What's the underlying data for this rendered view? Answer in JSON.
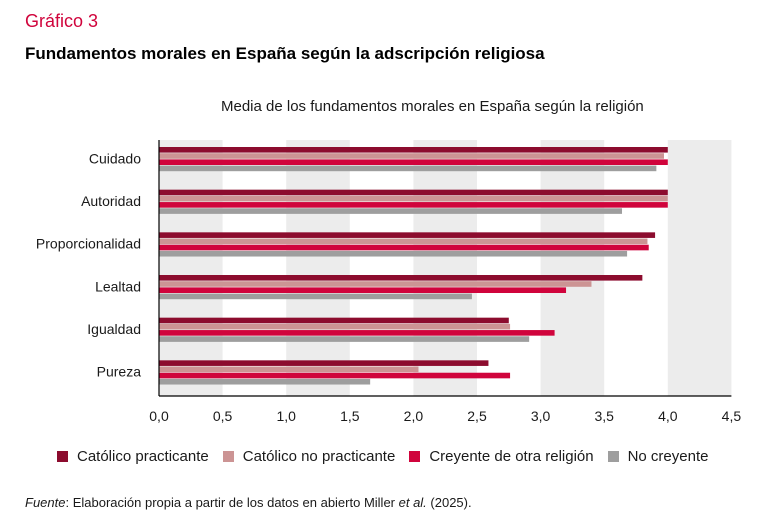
{
  "header": {
    "kicker": "Gráfico 3",
    "title": "Fundamentos morales en España según la adscripción religiosa"
  },
  "source": {
    "label": "Fuente",
    "text_before": ": Elaboración propia a partir de los datos en abierto Miller ",
    "italic": "et al.",
    "text_after": " (2025)."
  },
  "chart_data": {
    "type": "bar",
    "orientation": "horizontal",
    "title": "Media de los fundamentos morales en España según la religión",
    "xlabel": "",
    "ylabel": "",
    "xlim": [
      0,
      4.5
    ],
    "xticks": [
      "0,0",
      "0,5",
      "1,0",
      "1,5",
      "2,0",
      "2,5",
      "3,0",
      "3,5",
      "4,0",
      "4,5"
    ],
    "tick_values": [
      0,
      0.5,
      1.0,
      1.5,
      2.0,
      2.5,
      3.0,
      3.5,
      4.0,
      4.5
    ],
    "grid": "alternating vertical bands",
    "legend_position": "bottom",
    "categories": [
      "Cuidado",
      "Autoridad",
      "Proporcionalidad",
      "Lealtad",
      "Igualdad",
      "Pureza"
    ],
    "series": [
      {
        "name": "Católico practicante",
        "color": "#8c0c2e",
        "values": [
          4.0,
          4.0,
          3.9,
          3.8,
          2.75,
          2.59
        ]
      },
      {
        "name": "Católico no practicante",
        "color": "#cc9494",
        "values": [
          3.97,
          4.0,
          3.84,
          3.4,
          2.76,
          2.04
        ]
      },
      {
        "name": "Creyente de otra religión",
        "color": "#d0043c",
        "values": [
          4.0,
          4.0,
          3.85,
          3.2,
          3.11,
          2.76
        ]
      },
      {
        "name": "No creyente",
        "color": "#9e9e9e",
        "values": [
          3.91,
          3.64,
          3.68,
          2.46,
          2.91,
          1.66
        ]
      }
    ]
  }
}
